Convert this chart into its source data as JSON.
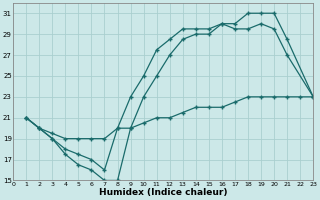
{
  "xlabel": "Humidex (Indice chaleur)",
  "bg_color": "#cce8e8",
  "grid_color": "#aacfcf",
  "line_color": "#1a6b6b",
  "xlim": [
    0,
    23
  ],
  "ylim": [
    15,
    32
  ],
  "xticks": [
    0,
    1,
    2,
    3,
    4,
    5,
    6,
    7,
    8,
    9,
    10,
    11,
    12,
    13,
    14,
    15,
    16,
    17,
    18,
    19,
    20,
    21,
    22,
    23
  ],
  "yticks": [
    15,
    17,
    19,
    21,
    23,
    25,
    27,
    29,
    31
  ],
  "line1_x": [
    1,
    2,
    3,
    4,
    5,
    6,
    7,
    8,
    9,
    10,
    11,
    12,
    13,
    14,
    15,
    16,
    17,
    18,
    19,
    20,
    21,
    23
  ],
  "line1_y": [
    21,
    20,
    19,
    17.5,
    16.5,
    16,
    15,
    15,
    20,
    23,
    25,
    27,
    28.5,
    29,
    29,
    30,
    30,
    31,
    31,
    31,
    28.5,
    23
  ],
  "line2_x": [
    1,
    2,
    3,
    4,
    5,
    6,
    7,
    8,
    9,
    10,
    11,
    12,
    13,
    14,
    15,
    16,
    17,
    18,
    19,
    20,
    21,
    23
  ],
  "line2_y": [
    21,
    20,
    19,
    18,
    17.5,
    17,
    16,
    20,
    23,
    25,
    27.5,
    28.5,
    29.5,
    29.5,
    29.5,
    30,
    29.5,
    29.5,
    30,
    29.5,
    27,
    23
  ],
  "line3_x": [
    1,
    2,
    3,
    4,
    5,
    6,
    7,
    8,
    9,
    10,
    11,
    12,
    13,
    14,
    15,
    16,
    17,
    18,
    19,
    20,
    21,
    22,
    23
  ],
  "line3_y": [
    21,
    20,
    19.5,
    19,
    19,
    19,
    19,
    20,
    20,
    20.5,
    21,
    21,
    21.5,
    22,
    22,
    22,
    22.5,
    23,
    23,
    23,
    23,
    23,
    23
  ]
}
